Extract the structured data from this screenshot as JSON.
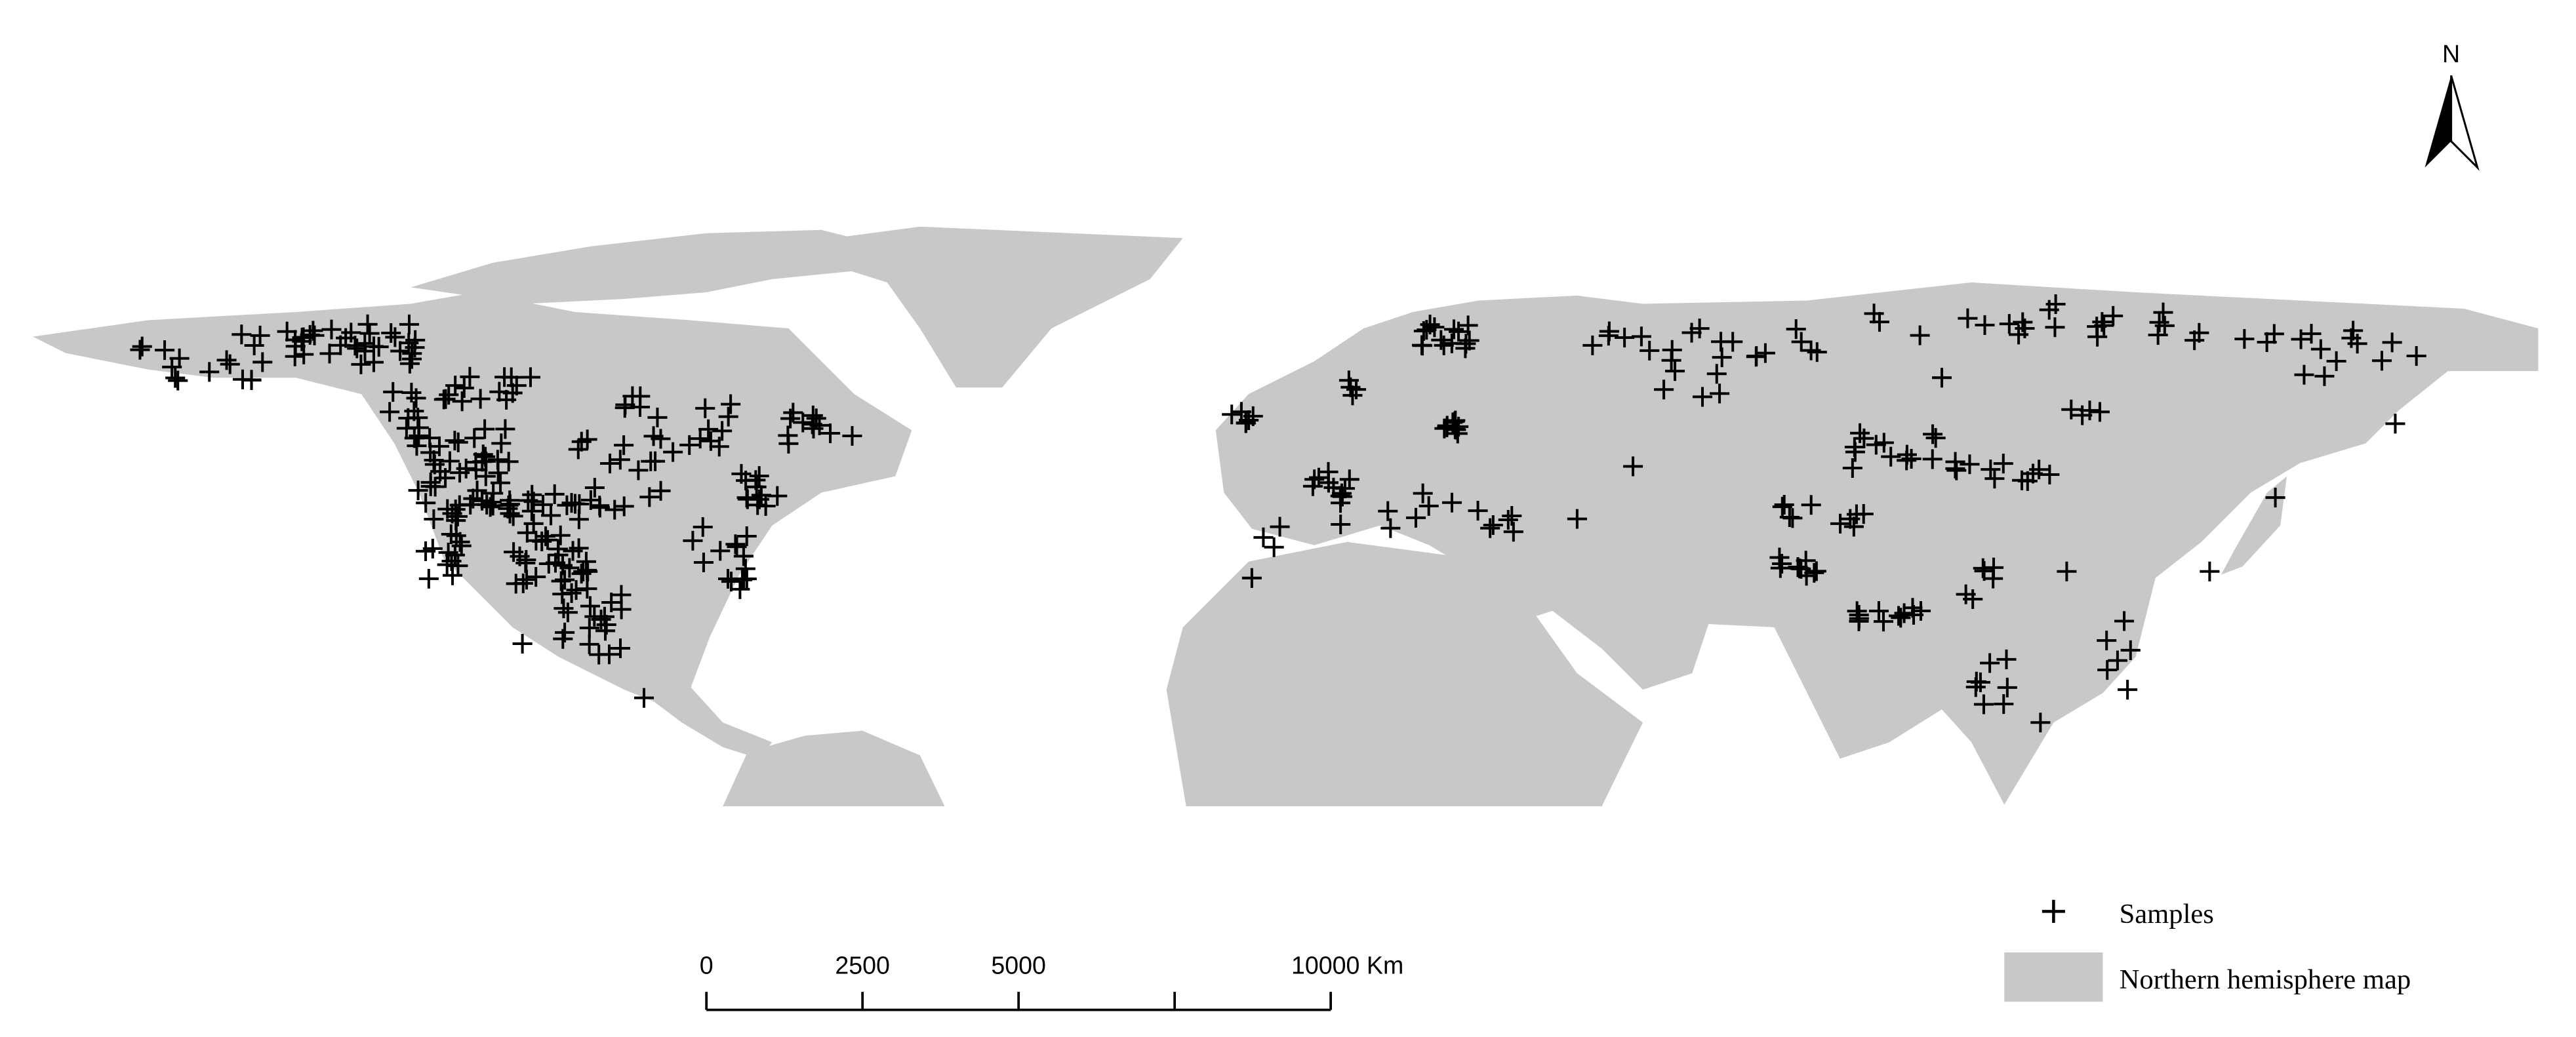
{
  "north_arrow": {
    "label": "N"
  },
  "scale_bar": {
    "labels": [
      "0",
      "2500",
      "5000",
      "10000 Km"
    ]
  },
  "legend": {
    "items": [
      {
        "label": "Samples"
      },
      {
        "label": "Northern hemisphere map"
      }
    ]
  }
}
